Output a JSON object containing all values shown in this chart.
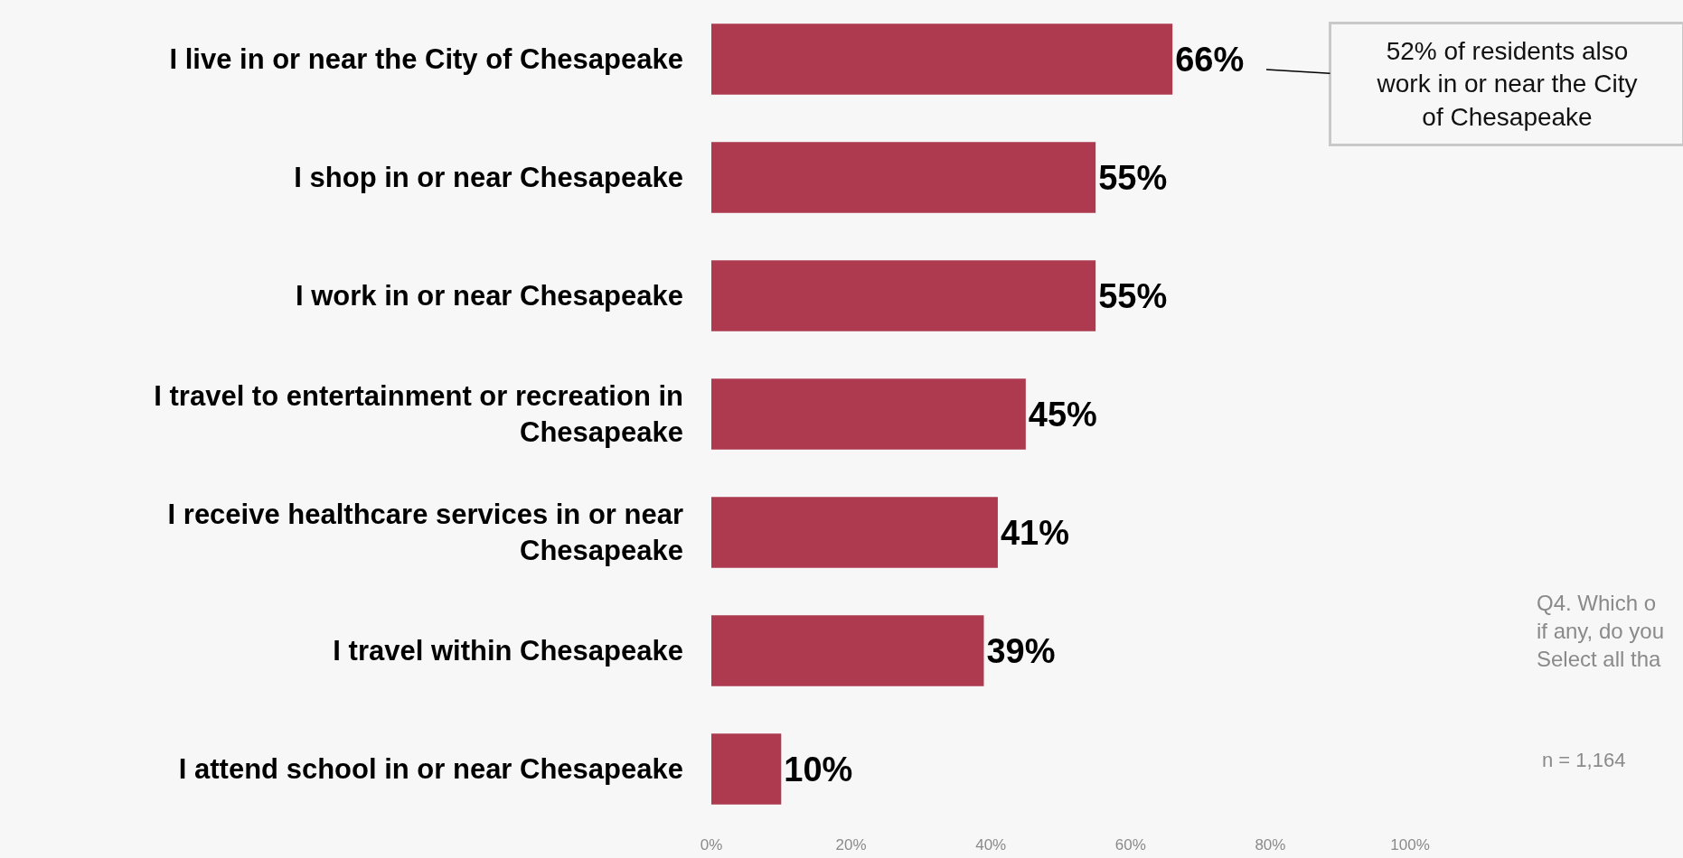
{
  "chart_data": {
    "type": "bar",
    "orientation": "horizontal",
    "categories": [
      "I live in or near the City of Chesapeake",
      "I shop in or near Chesapeake",
      "I work in or near Chesapeake",
      "I travel to entertainment or recreation in Chesapeake",
      "I receive healthcare services in or near Chesapeake",
      "I travel within Chesapeake",
      "I attend school in or near Chesapeake"
    ],
    "values": [
      66,
      55,
      55,
      45,
      41,
      39,
      10
    ],
    "color": "#ae3a50",
    "value_labels": [
      "66%",
      "55%",
      "55%",
      "45%",
      "41%",
      "39%",
      "10%"
    ],
    "xlim": [
      0,
      100
    ],
    "xticks": [
      {
        "value": 0,
        "label": "0%"
      },
      {
        "value": 20,
        "label": "20%"
      },
      {
        "value": 40,
        "label": "40%"
      },
      {
        "value": 60,
        "label": "60%"
      },
      {
        "value": 80,
        "label": "80%"
      },
      {
        "value": 100,
        "label": "100%"
      }
    ],
    "grid": false,
    "legend": false,
    "annotations": [
      "52% of residents also work in or near the City of Chesapeake",
      "Q4. Which o\nif any, do you\nSelect all tha",
      "n = 1,164"
    ]
  }
}
